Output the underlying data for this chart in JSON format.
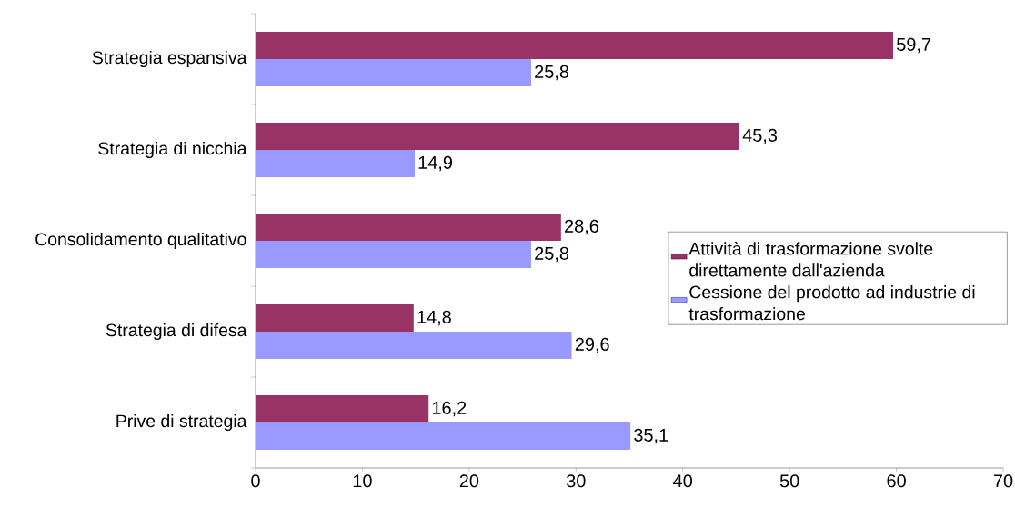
{
  "chart_data": {
    "type": "bar",
    "orientation": "horizontal",
    "categories": [
      "Strategia espansiva",
      "Strategia di nicchia",
      "Consolidamento qualitativo",
      "Strategia di difesa",
      "Prive di strategia"
    ],
    "series": [
      {
        "name": "Attività di trasformazione svolte direttamente dall'azienda",
        "color": "#993366",
        "values": [
          59.7,
          45.3,
          28.6,
          14.8,
          16.2
        ],
        "value_labels": [
          "59,7",
          "45,3",
          "28,6",
          "14,8",
          "16,2"
        ]
      },
      {
        "name": "Cessione del prodotto ad industrie di trasformazione",
        "color": "#9999ff",
        "values": [
          25.8,
          14.9,
          25.8,
          29.6,
          35.1
        ],
        "value_labels": [
          "25,8",
          "14,9",
          "25,8",
          "29,6",
          "35,1"
        ]
      }
    ],
    "xlim": [
      0,
      70
    ],
    "xticks": [
      0,
      10,
      20,
      30,
      40,
      50,
      60,
      70
    ],
    "legend": "right",
    "grid": false
  }
}
